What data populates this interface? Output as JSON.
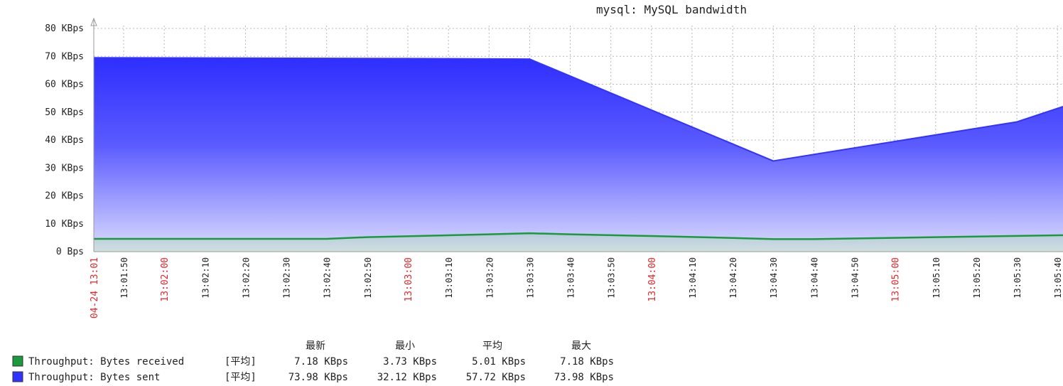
{
  "chart_data": {
    "type": "area",
    "title": "mysql: MySQL bandwidth",
    "xlabel": "",
    "ylabel": "",
    "ylim": [
      0,
      80
    ],
    "yticks": [
      {
        "v": 0,
        "label": "0 Bps"
      },
      {
        "v": 10,
        "label": "10 KBps"
      },
      {
        "v": 20,
        "label": "20 KBps"
      },
      {
        "v": 30,
        "label": "30 KBps"
      },
      {
        "v": 40,
        "label": "40 KBps"
      },
      {
        "v": 50,
        "label": "50 KBps"
      },
      {
        "v": 60,
        "label": "60 KBps"
      },
      {
        "v": 70,
        "label": "70 KBps"
      },
      {
        "v": 80,
        "label": "80 KBps"
      }
    ],
    "x_start_label": "04-24 13:01",
    "x_ticks": [
      {
        "label": "13:01:50",
        "major": false
      },
      {
        "label": "13:02:00",
        "major": true
      },
      {
        "label": "13:02:10",
        "major": false
      },
      {
        "label": "13:02:20",
        "major": false
      },
      {
        "label": "13:02:30",
        "major": false
      },
      {
        "label": "13:02:40",
        "major": false
      },
      {
        "label": "13:02:50",
        "major": false
      },
      {
        "label": "13:03:00",
        "major": true
      },
      {
        "label": "13:03:10",
        "major": false
      },
      {
        "label": "13:03:20",
        "major": false
      },
      {
        "label": "13:03:30",
        "major": false
      },
      {
        "label": "13:03:40",
        "major": false
      },
      {
        "label": "13:03:50",
        "major": false
      },
      {
        "label": "13:04:00",
        "major": true
      },
      {
        "label": "13:04:10",
        "major": false
      },
      {
        "label": "13:04:20",
        "major": false
      },
      {
        "label": "13:04:30",
        "major": false
      },
      {
        "label": "13:04:40",
        "major": false
      },
      {
        "label": "13:04:50",
        "major": false
      },
      {
        "label": "13:05:00",
        "major": true
      },
      {
        "label": "13:05:10",
        "major": false
      },
      {
        "label": "13:05:20",
        "major": false
      },
      {
        "label": "13:05:30",
        "major": false
      },
      {
        "label": "13:05:40",
        "major": false
      }
    ],
    "grid": true,
    "series": [
      {
        "name": "Throughput: Bytes sent",
        "color": "#3333ff",
        "points": [
          {
            "t": "13:01:41",
            "v": 69.5
          },
          {
            "t": "13:03:00",
            "v": 69.2
          },
          {
            "t": "13:03:30",
            "v": 69.0
          },
          {
            "t": "13:04:30",
            "v": 32.5
          },
          {
            "t": "13:05:30",
            "v": 46.5
          },
          {
            "t": "13:05:43",
            "v": 52.0
          }
        ]
      },
      {
        "name": "Throughput: Bytes received",
        "color": "#1a9a3a",
        "points": [
          {
            "t": "13:01:41",
            "v": 4.6
          },
          {
            "t": "13:02:40",
            "v": 4.6
          },
          {
            "t": "13:02:50",
            "v": 5.2
          },
          {
            "t": "13:03:20",
            "v": 6.2
          },
          {
            "t": "13:03:30",
            "v": 6.6
          },
          {
            "t": "13:03:40",
            "v": 6.2
          },
          {
            "t": "13:04:00",
            "v": 5.6
          },
          {
            "t": "13:04:20",
            "v": 4.9
          },
          {
            "t": "13:04:30",
            "v": 4.5
          },
          {
            "t": "13:04:40",
            "v": 4.5
          },
          {
            "t": "13:05:10",
            "v": 5.2
          },
          {
            "t": "13:05:43",
            "v": 5.9
          }
        ]
      }
    ]
  },
  "legend": {
    "headers": [
      "最新",
      "最小",
      "平均",
      "最大"
    ],
    "rows": [
      {
        "color": "#1a9a3a",
        "name": "Throughput: Bytes received",
        "tag": "[平均]",
        "values": [
          "7.18 KBps",
          "3.73 KBps",
          "5.01 KBps",
          "7.18 KBps"
        ]
      },
      {
        "color": "#3333ff",
        "name": "Throughput: Bytes sent",
        "tag": "[平均]",
        "values": [
          "73.98 KBps",
          "32.12 KBps",
          "57.72 KBps",
          "73.98 KBps"
        ]
      }
    ]
  }
}
